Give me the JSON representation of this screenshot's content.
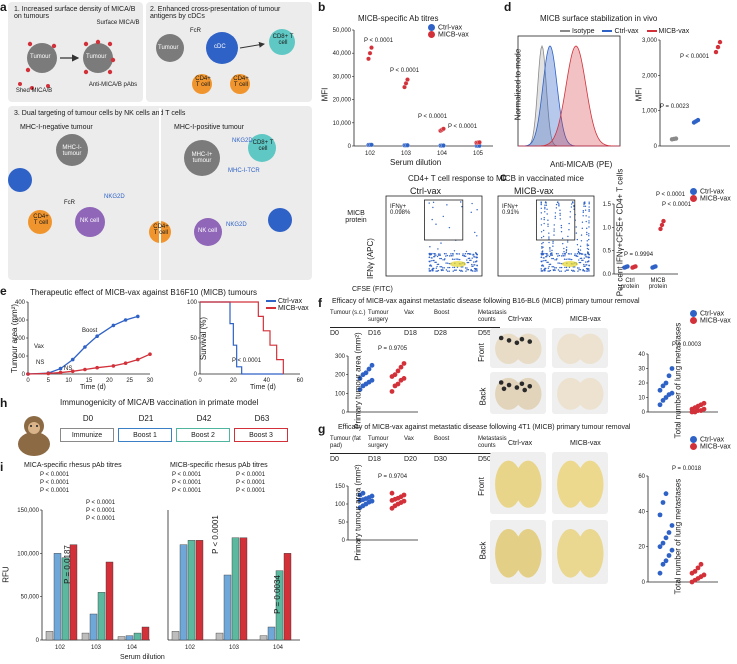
{
  "panel_a": {
    "label": "a",
    "box1_title": "1. Increased surface density of MICA/B on tumours",
    "box2_title": "2. Enhanced cross-presentation of tumour antigens by cDCs",
    "box3_title": "3. Dual targeting of tumour cells by NK cells and T cells",
    "surface": "Surface MICA/B",
    "shed": "Shed MICA/B",
    "anti": "Anti-MICA/B pAbs",
    "tumour": "Tumour",
    "fcr": "FcR",
    "cdc": "cDC",
    "cd8": "CD8+ T cell",
    "cd4": "CD4+ T cell",
    "mhc_neg": "MHC-I-negative tumour",
    "mhc_pos": "MHC-I-positive tumour",
    "mhc_i_tumour": "MHC-I- tumour",
    "mhc_plus_tumour": "MHC-I+ tumour",
    "nkg2d": "NKG2D",
    "nk": "NK cell",
    "mhc_tcr": "MHC-I-TCR"
  },
  "panel_b": {
    "label": "b",
    "title": "MICB-specific Ab titres",
    "ylabel": "MFI",
    "xlabel": "Serum dilution",
    "legend": [
      "Ctrl-vax",
      "MICB-vax"
    ],
    "p1": "P < 0.0001",
    "p2": "P < 0.0001",
    "p3": "P < 0.0001",
    "p4": "P < 0.0001"
  },
  "panel_c": {
    "label": "c",
    "title": "CD4+ T cell response to MICB in vaccinated mice",
    "ctrl": "Ctrl-vax",
    "micb": "MICB-vax",
    "micb_protein": "MICB protein",
    "gate_ctrl": "IFNγ+ 0.098%",
    "gate_micb": "IFNγ+ 0.91%",
    "xlabel": "CFSE (FITC)",
    "ylabel": "IFNγ (APC)",
    "bar_ylabel": "Per cent IFNγ+CFSE+ CD4+ T cells",
    "p_a": "P < 0.0001",
    "p_b": "P < 0.0001",
    "p_c": "P = 0.9994",
    "cat1": "Ctrl protein",
    "cat2": "MICB protein"
  },
  "panel_d": {
    "label": "d",
    "title": "MICB surface stabilization in vivo",
    "legend": [
      "Isotype",
      "Ctrl-vax",
      "MICB-vax"
    ],
    "ylabel": "Normalized to mode",
    "xlabel": "Anti-MICA/B (PE)",
    "mfi": "MFI",
    "p1": "P < 0.0001",
    "p2": "P = 0.0023"
  },
  "panel_e": {
    "label": "e",
    "title": "Therapeutic effect of MICB-vax against B16F10 (MICB) tumours",
    "ylabel": "Tumour area (mm²)",
    "xlabel": "Time (d)",
    "surv_ylabel": "Survival (%)",
    "surv_p": "P < 0.0001",
    "vax": "Vax",
    "boost": "Boost",
    "ns": "NS",
    "legend": [
      "Ctrl-vax",
      "MICB-vax"
    ]
  },
  "panel_f": {
    "label": "f",
    "title": "Efficacy of MICB-vax against metastatic disease following B16-BL6 (MICB) primary tumour removal",
    "timeline": [
      "Tumour (s.c.)",
      "Tumour surgery",
      "Vax",
      "Boost",
      "Metastasis counts"
    ],
    "days": [
      "D0",
      "D16",
      "D18",
      "D28",
      "D55"
    ],
    "p_primary": "P = 0.9705",
    "ylabel": "Primary tumour area (mm²)",
    "ctrl": "Ctrl-vax",
    "micb": "MICB-vax",
    "front": "Front",
    "back": "Back",
    "p_met": "P = 0.0003",
    "met_ylabel": "Total number of lung metastases",
    "legend": [
      "Ctrl-vax",
      "MICB-vax"
    ]
  },
  "panel_g": {
    "label": "g",
    "title": "Efficacy of MICB-vax against metastatic disease following 4T1 (MICB) primary tumour removal",
    "timeline": [
      "Tumour (fat pad)",
      "Tumour surgery",
      "Vax",
      "Boost",
      "Metastasis counts"
    ],
    "days": [
      "D0",
      "D18",
      "D20",
      "D30",
      "D50"
    ],
    "p_primary": "P = 0.9704",
    "ylabel": "Primary tumour area (mm²)",
    "ctrl": "Ctrl-vax",
    "micb": "MICB-vax",
    "front": "Front",
    "back": "Back",
    "p_met": "P = 0.0018",
    "met_ylabel": "Total number of lung metastases",
    "legend": [
      "Ctrl-vax",
      "MICB-vax"
    ]
  },
  "panel_h": {
    "label": "h",
    "title": "Immunogenicity of MICA/B vaccination in primate model",
    "days": [
      "D0",
      "D21",
      "D42",
      "D63"
    ],
    "steps": [
      "Immunize",
      "Boost 1",
      "Boost 2",
      "Boost 3"
    ]
  },
  "panel_i": {
    "label": "i",
    "title1": "MICA-specific rhesus pAb titres",
    "title2": "MICB-specific rhesus pAb titres",
    "ylabel": "RFU",
    "xlabel": "Serum dilution",
    "p_common": "P < 0.0001",
    "p_0187": "P = 0.0187",
    "p_0034": "P = 0.0034"
  },
  "colors": {
    "blue": "#2f62c6",
    "red": "#d2313a",
    "grey": "#8a8a8a"
  },
  "chart_data": [
    {
      "type": "scatter",
      "title": "MICB-specific Ab titres",
      "x": [
        "10^2",
        "10^3",
        "10^4",
        "10^5"
      ],
      "xlabel": "Serum dilution",
      "ylabel": "MFI",
      "ylim": [
        0,
        50000
      ],
      "series": [
        {
          "name": "Ctrl-vax",
          "values": [
            500,
            300,
            200,
            100
          ]
        },
        {
          "name": "MICB-vax",
          "values": [
            40000,
            27000,
            7000,
            1500
          ]
        }
      ]
    },
    {
      "type": "bar",
      "title": "MFI",
      "categories": [
        "Isotype",
        "Ctrl-vax",
        "MICB-vax"
      ],
      "values": [
        200,
        700,
        2800
      ],
      "ylim": [
        0,
        3000
      ]
    },
    {
      "type": "scatter",
      "title": "Per cent IFNγ+CFSE+ CD4+ T cells",
      "categories": [
        "Ctrl protein",
        "MICB protein"
      ],
      "series": [
        {
          "name": "Ctrl-vax",
          "values": [
            0.15,
            0.15
          ]
        },
        {
          "name": "MICB-vax",
          "values": [
            0.15,
            1.05
          ]
        }
      ],
      "ylim": [
        0,
        1.5
      ]
    },
    {
      "type": "line",
      "title": "Therapeutic effect of MICB-vax against B16F10 (MICB) tumours",
      "x": [
        0,
        5,
        8,
        11,
        14,
        17,
        21,
        24,
        27,
        30
      ],
      "xlabel": "Time (d)",
      "ylabel": "Tumour area (mm²)",
      "ylim": [
        0,
        400
      ],
      "xlim": [
        0,
        30
      ],
      "series": [
        {
          "name": "Ctrl-vax",
          "values": [
            0,
            5,
            30,
            80,
            150,
            210,
            270,
            300,
            320,
            null
          ]
        },
        {
          "name": "MICB-vax",
          "values": [
            0,
            3,
            8,
            15,
            25,
            35,
            45,
            60,
            80,
            110
          ]
        }
      ]
    },
    {
      "type": "line",
      "title": "Survival",
      "x": [
        0,
        15,
        18,
        20,
        22,
        25,
        30,
        35,
        38,
        42,
        46,
        50
      ],
      "xlabel": "Time (d)",
      "ylabel": "Survival (%)",
      "ylim": [
        0,
        100
      ],
      "series": [
        {
          "name": "Ctrl-vax",
          "values": [
            100,
            100,
            70,
            40,
            10,
            0,
            0,
            0,
            0,
            0,
            0,
            0
          ]
        },
        {
          "name": "MICB-vax",
          "values": [
            100,
            100,
            100,
            100,
            100,
            100,
            100,
            80,
            60,
            40,
            20,
            0
          ]
        }
      ]
    },
    {
      "type": "scatter",
      "title": "Total number of lung metastases (B16-BL6)",
      "categories": [
        "Ctrl-vax",
        "MICB-vax"
      ],
      "ylim": [
        0,
        40
      ],
      "series": [
        {
          "name": "Ctrl-vax",
          "values": [
            5,
            8,
            10,
            12,
            13,
            15,
            18,
            20,
            25,
            30
          ]
        },
        {
          "name": "MICB-vax",
          "values": [
            0,
            0,
            1,
            1,
            2,
            2,
            3,
            4,
            5,
            6
          ]
        }
      ]
    },
    {
      "type": "scatter",
      "title": "Total number of lung metastases (4T1)",
      "categories": [
        "Ctrl-vax",
        "MICB-vax"
      ],
      "ylim": [
        0,
        60
      ],
      "series": [
        {
          "name": "Ctrl-vax",
          "values": [
            5,
            10,
            12,
            15,
            18,
            20,
            22,
            25,
            28,
            32,
            38,
            45,
            50
          ]
        },
        {
          "name": "MICB-vax",
          "values": [
            0,
            1,
            2,
            3,
            4,
            5,
            6,
            8,
            10
          ]
        }
      ]
    },
    {
      "type": "bar",
      "title": "MICA-specific rhesus pAb titres",
      "categories": [
        "10^2",
        "10^3",
        "10^4"
      ],
      "ylim": [
        0,
        150000
      ],
      "series": [
        {
          "name": "D0",
          "values": [
            10000,
            8000,
            4000
          ]
        },
        {
          "name": "D21",
          "values": [
            100000,
            30000,
            5000
          ]
        },
        {
          "name": "D42",
          "values": [
            95000,
            55000,
            8000
          ]
        },
        {
          "name": "D63",
          "values": [
            110000,
            90000,
            15000
          ]
        }
      ]
    },
    {
      "type": "bar",
      "title": "MICB-specific rhesus pAb titres",
      "categories": [
        "10^2",
        "10^3",
        "10^4"
      ],
      "ylim": [
        0,
        150000
      ],
      "series": [
        {
          "name": "D0",
          "values": [
            10000,
            8000,
            5000
          ]
        },
        {
          "name": "D21",
          "values": [
            110000,
            75000,
            15000
          ]
        },
        {
          "name": "D42",
          "values": [
            115000,
            118000,
            80000
          ]
        },
        {
          "name": "D63",
          "values": [
            115000,
            118000,
            100000
          ]
        }
      ]
    }
  ]
}
